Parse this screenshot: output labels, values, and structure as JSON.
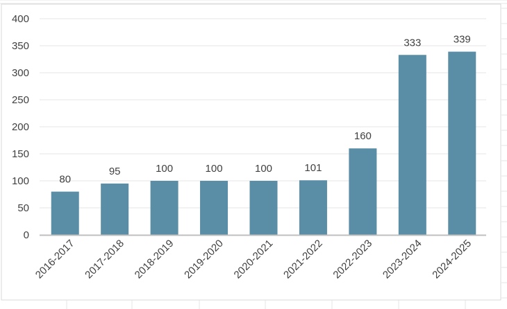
{
  "chart_data": {
    "type": "bar",
    "categories": [
      "2016-2017",
      "2017-2018",
      "2018-2019",
      "2019-2020",
      "2020-2021",
      "2021-2022",
      "2022-2023",
      "2023-2024",
      "2024-2025"
    ],
    "values": [
      80,
      95,
      100,
      100,
      100,
      101,
      160,
      333,
      339
    ],
    "data_labels": [
      "80",
      "95",
      "100",
      "100",
      "100",
      "101",
      "160",
      "333",
      "339"
    ],
    "yticks": [
      "0",
      "50",
      "100",
      "150",
      "200",
      "250",
      "300",
      "350",
      "400"
    ],
    "ylim": [
      0,
      400
    ],
    "title": "",
    "xlabel": "",
    "ylabel": "",
    "grid": true,
    "legend": "none",
    "colors": {
      "bar": "#5a8da6",
      "gridline": "#e4e4e4",
      "axis": "#bfbfbf",
      "sheet_grid": "#e6e6e6",
      "frame": "#d9d9d9"
    }
  }
}
